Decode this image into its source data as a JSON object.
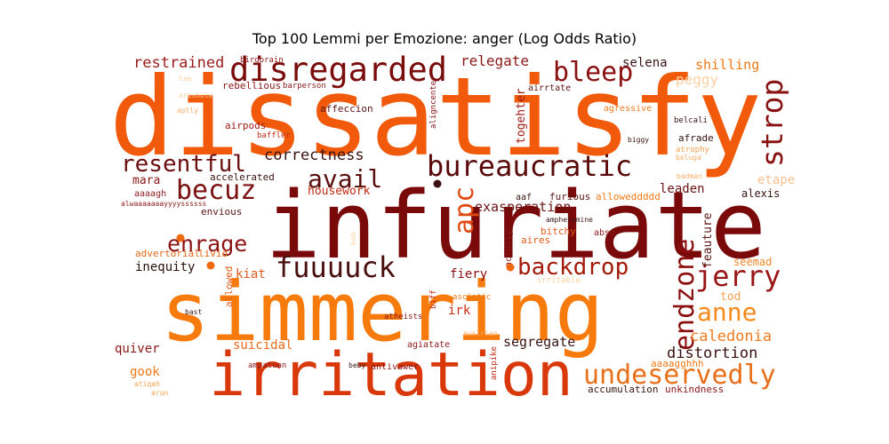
{
  "chart_data": {
    "type": "wordcloud",
    "title": "Top 100 Lemmi per Emozione: anger (Log Odds Ratio)",
    "colormap": [
      "#fdd0a2",
      "#fdae6b",
      "#fd8d3c",
      "#f16913",
      "#d94801",
      "#a63603",
      "#7f2704",
      "#67000d"
    ],
    "words": [
      {
        "text": "dissatisfy",
        "color": "#f05a0a"
      },
      {
        "text": "infuriate",
        "color": "#7a0a0a"
      },
      {
        "text": "simmering",
        "color": "#f77b0c"
      },
      {
        "text": "irritation",
        "color": "#d9380a"
      },
      {
        "text": "disregarded",
        "color": "#7a0c0c"
      },
      {
        "text": "bureaucratic",
        "color": "#5a0a0a"
      },
      {
        "text": "bleep",
        "color": "#8a1010"
      },
      {
        "text": "strop",
        "color": "#8a1212"
      },
      {
        "text": "resentful",
        "color": "#6a0e0e"
      },
      {
        "text": "avail",
        "color": "#5a0e0e"
      },
      {
        "text": "becuz",
        "color": "#7a1010"
      },
      {
        "text": "enrage",
        "color": "#8a1414"
      },
      {
        "text": "fuuuuck",
        "color": "#4a1010"
      },
      {
        "text": "backdrop",
        "color": "#a41a0a"
      },
      {
        "text": "jerry",
        "color": "#9a1515"
      },
      {
        "text": "endzone",
        "color": "#8a0e0e"
      },
      {
        "text": "anne",
        "color": "#f58a1a"
      },
      {
        "text": "undeservedly",
        "color": "#e8701a"
      },
      {
        "text": "apc",
        "color": "#e04a12"
      },
      {
        "text": "caledonia",
        "color": "#f07a20"
      },
      {
        "text": "distortion",
        "color": "#3a1010"
      },
      {
        "text": "correctness",
        "color": "#3a1212"
      },
      {
        "text": "restrained",
        "color": "#9a1a1a"
      },
      {
        "text": "relegate",
        "color": "#8a1818"
      },
      {
        "text": "selena",
        "color": "#3a1414"
      },
      {
        "text": "shilling",
        "color": "#f07a14"
      },
      {
        "text": "peggy",
        "color": "#fdd0a2"
      },
      {
        "text": "exasperation",
        "color": "#6a1414"
      },
      {
        "text": "leaden",
        "color": "#6a1414"
      },
      {
        "text": "housework",
        "color": "#c02a10"
      },
      {
        "text": "mara",
        "color": "#8a1818"
      },
      {
        "text": "inequity",
        "color": "#2a1010"
      },
      {
        "text": "fiery",
        "color": "#8a1010"
      },
      {
        "text": "segregate",
        "color": "#3a1414"
      },
      {
        "text": "suicidal",
        "color": "#e86a1a"
      },
      {
        "text": "quiver",
        "color": "#8a1616"
      },
      {
        "text": "gook",
        "color": "#f07a1a"
      },
      {
        "text": "irk",
        "color": "#c82a12"
      },
      {
        "text": "kiat",
        "color": "#e05a1a"
      },
      {
        "text": "seemad",
        "color": "#f08a2a"
      },
      {
        "text": "tod",
        "color": "#f5a050"
      },
      {
        "text": "etape",
        "color": "#fdc090"
      },
      {
        "text": "feauture",
        "color": "#5a1414"
      },
      {
        "text": "alexis",
        "color": "#3a1414"
      },
      {
        "text": "togehter",
        "color": "#a01a14"
      },
      {
        "text": "aaaagghhh",
        "color": "#f07a1a"
      },
      {
        "text": "envious",
        "color": "#5a1414"
      },
      {
        "text": "advertorial",
        "color": "#e06a1a"
      },
      {
        "text": "livid",
        "color": "#e06a1a"
      },
      {
        "text": "rebellious",
        "color": "#8a1818"
      },
      {
        "text": "barperson",
        "color": "#8a1818"
      },
      {
        "text": "birdbrain",
        "color": "#8a1818"
      },
      {
        "text": "affeccion",
        "color": "#5a1414"
      },
      {
        "text": "airrtate",
        "color": "#5a1414"
      },
      {
        "text": "agressive",
        "color": "#f07a1a"
      },
      {
        "text": "belcali",
        "color": "#3a1414"
      },
      {
        "text": "biggy",
        "color": "#3a1414"
      },
      {
        "text": "afrade",
        "color": "#3a1414"
      },
      {
        "text": "atrophy",
        "color": "#f5a050"
      },
      {
        "text": "beluga",
        "color": "#fdae6b"
      },
      {
        "text": "badman",
        "color": "#fdae6b"
      },
      {
        "text": "airpods",
        "color": "#a01a14"
      },
      {
        "text": "baffler",
        "color": "#c02a12"
      },
      {
        "text": "aptly",
        "color": "#fdae6b"
      },
      {
        "text": "tae",
        "color": "#fdd0a2"
      },
      {
        "text": "areshole",
        "color": "#fdd0a2"
      },
      {
        "text": "accelerated",
        "color": "#3a1414"
      },
      {
        "text": "aaaagh",
        "color": "#8a1818"
      },
      {
        "text": "alwaaaaaaayyyyssssss",
        "color": "#8a1818"
      },
      {
        "text": "aaf",
        "color": "#3a1414"
      },
      {
        "text": "furious",
        "color": "#5a1414"
      },
      {
        "text": "alloweddddd",
        "color": "#f07a1a"
      },
      {
        "text": "amphetamine",
        "color": "#3a1414"
      },
      {
        "text": "bitchy",
        "color": "#e05a1a"
      },
      {
        "text": "abso",
        "color": "#8a1818"
      },
      {
        "text": "aires",
        "color": "#e05a1a"
      },
      {
        "text": "actully",
        "color": "#8a1818"
      },
      {
        "text": "irritable",
        "color": "#fdd0a2"
      },
      {
        "text": "allowed",
        "color": "#e05a1a"
      },
      {
        "text": "bast",
        "color": "#3a1414"
      },
      {
        "text": "biff",
        "color": "#c02a12"
      },
      {
        "text": "asciatic",
        "color": "#f07a1a"
      },
      {
        "text": "atheists",
        "color": "#8a1818"
      },
      {
        "text": "austrian",
        "color": "#fdae6b"
      },
      {
        "text": "agiatate",
        "color": "#8a1818"
      },
      {
        "text": "anipike",
        "color": "#c02a12"
      },
      {
        "text": "ampatuan",
        "color": "#8a1818"
      },
      {
        "text": "beby",
        "color": "#3a1414"
      },
      {
        "text": "antivawer",
        "color": "#8a1818"
      },
      {
        "text": "accumulation",
        "color": "#3a1414"
      },
      {
        "text": "unkindness",
        "color": "#8a1818"
      },
      {
        "text": "atiqah",
        "color": "#f5a050"
      },
      {
        "text": "arun",
        "color": "#f5a050"
      },
      {
        "text": "aligncenter",
        "color": "#8a1818"
      },
      {
        "text": "bnb",
        "color": "#fdd0a2"
      }
    ]
  }
}
